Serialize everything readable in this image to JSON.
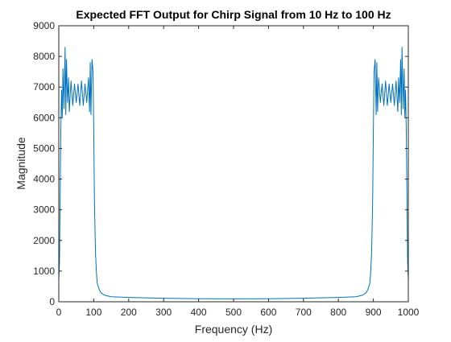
{
  "chart_data": {
    "type": "line",
    "title": "Expected FFT Output for Chirp Signal from 10 Hz to 100 Hz",
    "xlabel": "Frequency (Hz)",
    "ylabel": "Magnitude",
    "xlim": [
      0,
      1000
    ],
    "ylim": [
      0,
      9000
    ],
    "xticks": [
      0,
      100,
      200,
      300,
      400,
      500,
      600,
      700,
      800,
      900,
      1000
    ],
    "yticks": [
      0,
      1000,
      2000,
      3000,
      4000,
      5000,
      6000,
      7000,
      8000,
      9000
    ],
    "grid": false,
    "box": true,
    "series": [
      {
        "color": "#0072bd",
        "x": [
          0,
          2,
          4,
          6,
          8,
          10,
          12,
          15,
          18,
          20,
          22,
          25,
          28,
          30,
          35,
          40,
          45,
          50,
          55,
          60,
          65,
          70,
          75,
          80,
          85,
          88,
          90,
          92,
          95,
          98,
          100,
          102,
          105,
          108,
          110,
          115,
          120,
          130,
          140,
          150,
          200,
          300,
          400,
          500,
          600,
          700,
          800,
          850,
          860,
          870,
          880,
          885,
          890,
          892,
          895,
          898,
          900,
          902,
          905,
          908,
          910,
          912,
          915,
          920,
          925,
          930,
          935,
          940,
          945,
          950,
          955,
          960,
          965,
          970,
          972,
          975,
          978,
          980,
          982,
          985,
          988,
          990,
          992,
          994,
          996,
          998,
          1000
        ],
        "y": [
          700,
          1300,
          3600,
          5700,
          6900,
          6000,
          7600,
          6300,
          8300,
          6100,
          7900,
          6500,
          7300,
          6200,
          7200,
          6400,
          7100,
          6500,
          7100,
          6400,
          7200,
          6400,
          7100,
          6500,
          7300,
          6200,
          7800,
          6100,
          7900,
          7500,
          5600,
          3300,
          1600,
          900,
          600,
          420,
          300,
          220,
          190,
          165,
          140,
          115,
          100,
          95,
          100,
          115,
          140,
          165,
          190,
          220,
          300,
          420,
          600,
          900,
          1600,
          3300,
          5600,
          7500,
          7900,
          6100,
          7800,
          6200,
          7300,
          6500,
          7100,
          6400,
          7200,
          6400,
          7100,
          6500,
          7100,
          6400,
          7200,
          6200,
          7300,
          6500,
          7900,
          6100,
          8300,
          6300,
          7600,
          6000,
          6900,
          5700,
          3600,
          1300,
          700
        ]
      }
    ]
  }
}
